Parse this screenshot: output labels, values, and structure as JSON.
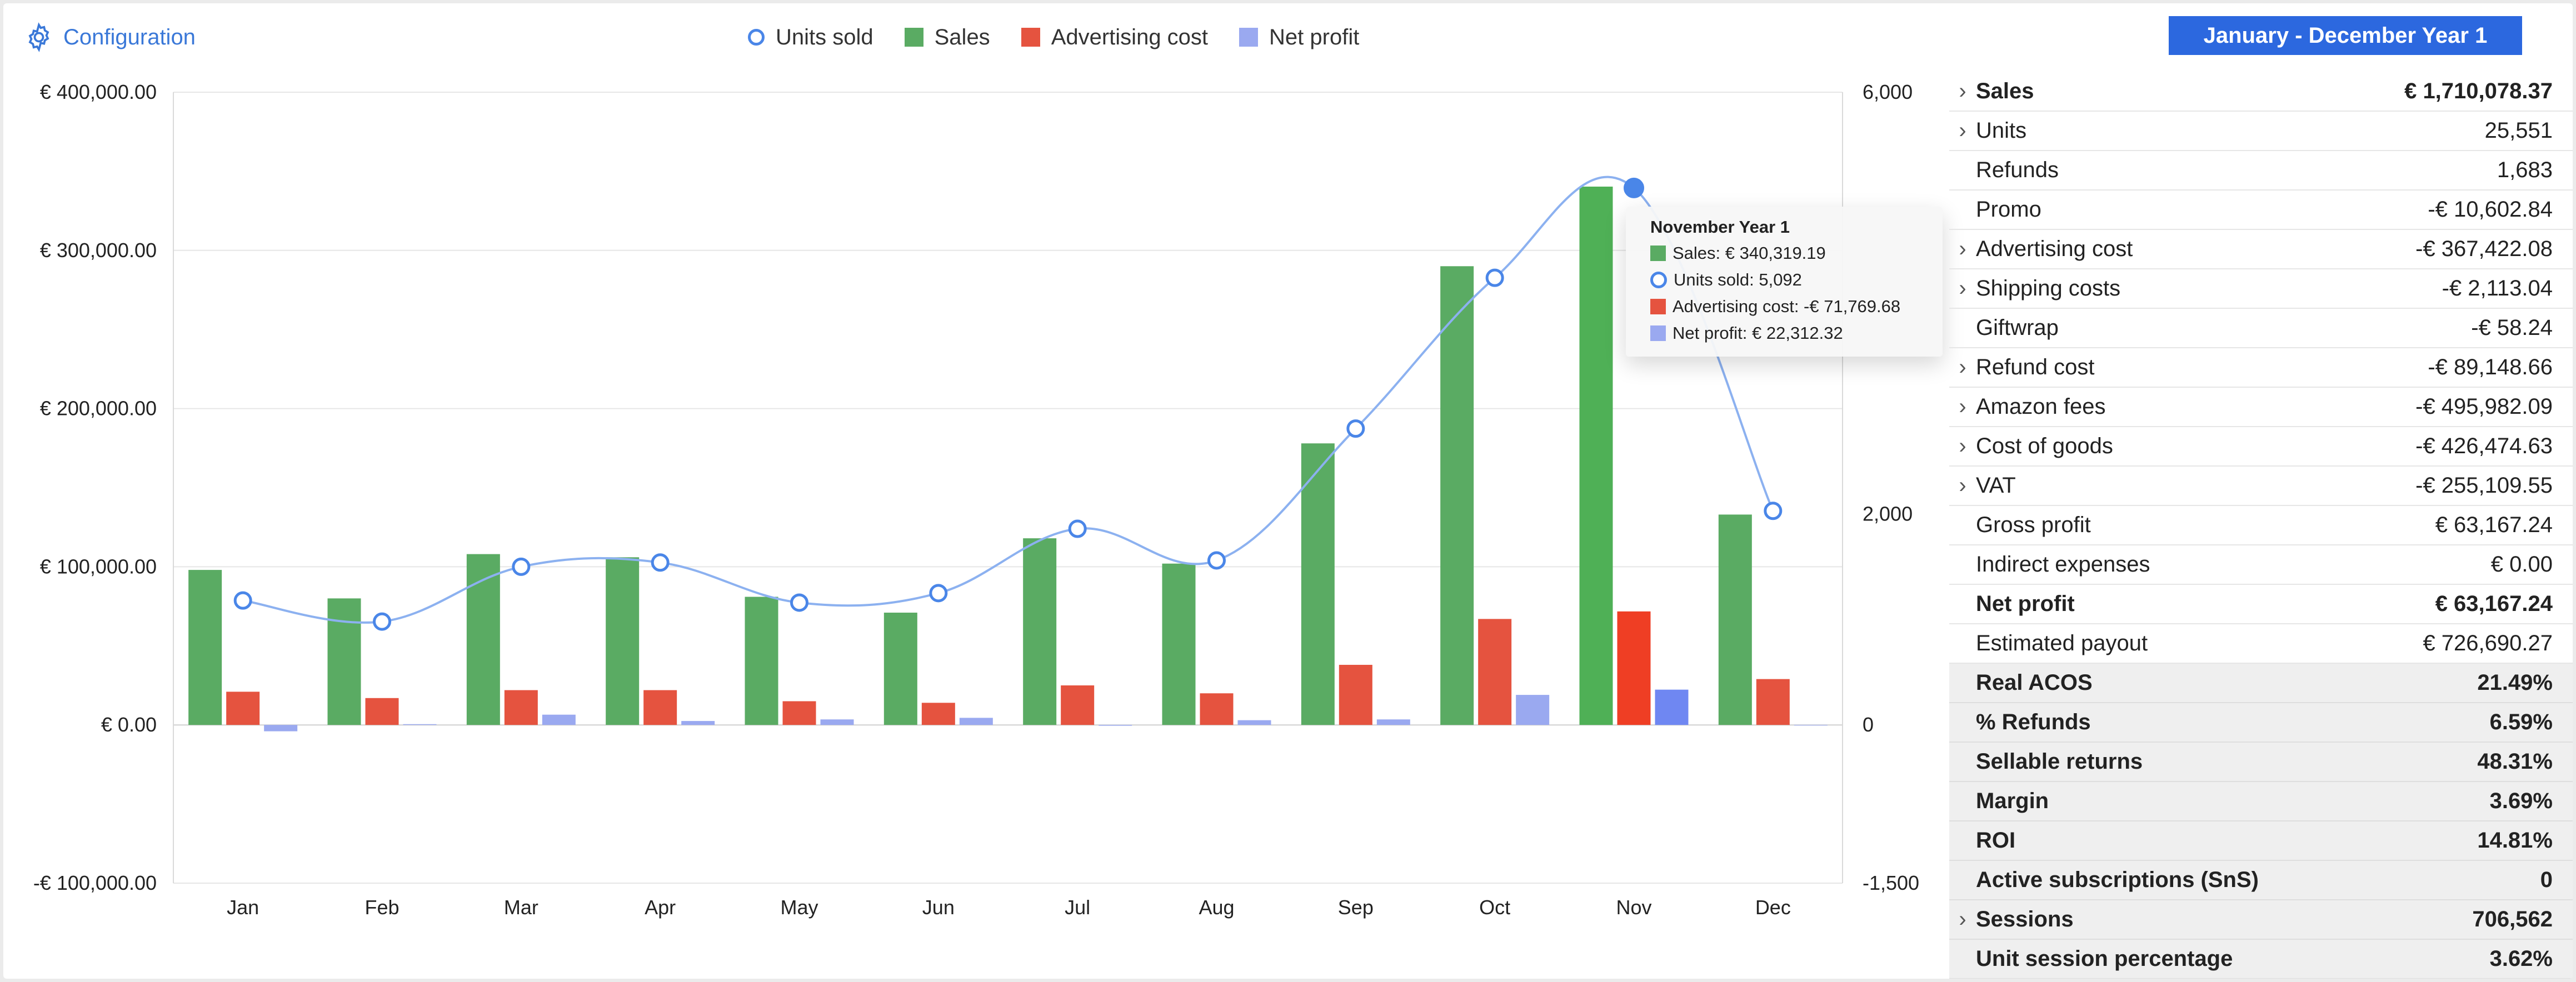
{
  "header": {
    "config_label": "Configuration",
    "period_label": "January - December Year 1"
  },
  "legend": [
    {
      "label": "Units sold",
      "marker": "circle",
      "color": "#4a86e8"
    },
    {
      "label": "Sales",
      "marker": "square",
      "color": "#5aab63"
    },
    {
      "label": "Advertising cost",
      "marker": "square",
      "color": "#e5533f"
    },
    {
      "label": "Net profit",
      "marker": "square",
      "color": "#9aa9f0"
    }
  ],
  "tooltip": {
    "title": "November Year 1",
    "rows": [
      {
        "text": "Sales: € 340,319.19",
        "marker": "square",
        "color": "#5aab63"
      },
      {
        "text": "Units sold: 5,092",
        "marker": "circle",
        "color": "#4a86e8"
      },
      {
        "text": "Advertising cost: -€ 71,769.68",
        "marker": "square",
        "color": "#e5533f"
      },
      {
        "text": "Net profit: € 22,312.32",
        "marker": "square",
        "color": "#9aa9f0"
      }
    ]
  },
  "chart_data": {
    "type": "bar",
    "categories": [
      "Jan",
      "Feb",
      "Mar",
      "Apr",
      "May",
      "Jun",
      "Jul",
      "Aug",
      "Sep",
      "Oct",
      "Nov",
      "Dec"
    ],
    "highlight_index": 10,
    "y_left": {
      "ylim": [
        -100000,
        400000
      ],
      "ticks": [
        400000,
        300000,
        200000,
        100000,
        0,
        -100000
      ],
      "tick_labels": [
        "€ 400,000.00",
        "€ 300,000.00",
        "€ 200,000.00",
        "€ 100,000.00",
        "€ 0.00",
        "-€ 100,000.00"
      ]
    },
    "y_right": {
      "ylim": [
        -1500,
        6000
      ],
      "ticks": [
        6000,
        2000,
        0,
        -1500
      ],
      "tick_labels": [
        "6,000",
        "2,000",
        "0",
        "-1,500"
      ]
    },
    "grid": true,
    "series": [
      {
        "name": "Sales",
        "type": "bar",
        "axis": "left",
        "color": "#5aab63",
        "values": [
          98000,
          80000,
          108000,
          106000,
          81000,
          71000,
          118000,
          102000,
          178000,
          290000,
          340319.19,
          133000
        ]
      },
      {
        "name": "Advertising cost",
        "type": "bar",
        "axis": "left",
        "color": "#e5533f",
        "values": [
          21000,
          17000,
          22000,
          22000,
          15000,
          14000,
          25000,
          20000,
          38000,
          67000,
          71769.68,
          29000
        ]
      },
      {
        "name": "Net profit",
        "type": "bar",
        "axis": "left",
        "color": "#9aa9f0",
        "values": [
          -4000,
          500,
          6500,
          2500,
          3500,
          4500,
          -500,
          3000,
          3500,
          19000,
          22312.32,
          0
        ]
      },
      {
        "name": "Units sold",
        "type": "line",
        "axis": "right",
        "color": "#4a86e8",
        "values": [
          1180,
          980,
          1500,
          1540,
          1160,
          1250,
          1860,
          1560,
          2810,
          4240,
          5092,
          2030
        ]
      }
    ]
  },
  "metrics": [
    {
      "label": "Sales",
      "value": "€ 1,710,078.37",
      "expandable": true,
      "bold": true,
      "shaded": false
    },
    {
      "label": "Units",
      "value": "25,551",
      "expandable": true,
      "bold": false,
      "shaded": false
    },
    {
      "label": "Refunds",
      "value": "1,683",
      "expandable": false,
      "bold": false,
      "shaded": false
    },
    {
      "label": "Promo",
      "value": "-€ 10,602.84",
      "expandable": false,
      "bold": false,
      "shaded": false
    },
    {
      "label": "Advertising cost",
      "value": "-€ 367,422.08",
      "expandable": true,
      "bold": false,
      "shaded": false
    },
    {
      "label": "Shipping costs",
      "value": "-€ 2,113.04",
      "expandable": true,
      "bold": false,
      "shaded": false
    },
    {
      "label": "Giftwrap",
      "value": "-€ 58.24",
      "expandable": false,
      "bold": false,
      "shaded": false
    },
    {
      "label": "Refund cost",
      "value": "-€ 89,148.66",
      "expandable": true,
      "bold": false,
      "shaded": false
    },
    {
      "label": "Amazon fees",
      "value": "-€ 495,982.09",
      "expandable": true,
      "bold": false,
      "shaded": false
    },
    {
      "label": "Cost of goods",
      "value": "-€ 426,474.63",
      "expandable": true,
      "bold": false,
      "shaded": false
    },
    {
      "label": "VAT",
      "value": "-€ 255,109.55",
      "expandable": true,
      "bold": false,
      "shaded": false
    },
    {
      "label": "Gross profit",
      "value": "€ 63,167.24",
      "expandable": false,
      "bold": false,
      "shaded": false
    },
    {
      "label": "Indirect expenses",
      "value": "€ 0.00",
      "expandable": false,
      "bold": false,
      "shaded": false
    },
    {
      "label": "Net profit",
      "value": "€ 63,167.24",
      "expandable": false,
      "bold": true,
      "shaded": false
    },
    {
      "label": "Estimated payout",
      "value": "€ 726,690.27",
      "expandable": false,
      "bold": false,
      "shaded": false
    },
    {
      "label": "Real ACOS",
      "value": "21.49%",
      "expandable": false,
      "bold": true,
      "shaded": true
    },
    {
      "label": "% Refunds",
      "value": "6.59%",
      "expandable": false,
      "bold": true,
      "shaded": true
    },
    {
      "label": "Sellable returns",
      "value": "48.31%",
      "expandable": false,
      "bold": true,
      "shaded": true
    },
    {
      "label": "Margin",
      "value": "3.69%",
      "expandable": false,
      "bold": true,
      "shaded": true
    },
    {
      "label": "ROI",
      "value": "14.81%",
      "expandable": false,
      "bold": true,
      "shaded": true
    },
    {
      "label": "Active subscriptions (SnS)",
      "value": "0",
      "expandable": false,
      "bold": true,
      "shaded": true
    },
    {
      "label": "Sessions",
      "value": "706,562",
      "expandable": true,
      "bold": true,
      "shaded": true
    },
    {
      "label": "Unit session percentage",
      "value": "3.62%",
      "expandable": false,
      "bold": true,
      "shaded": true
    }
  ]
}
